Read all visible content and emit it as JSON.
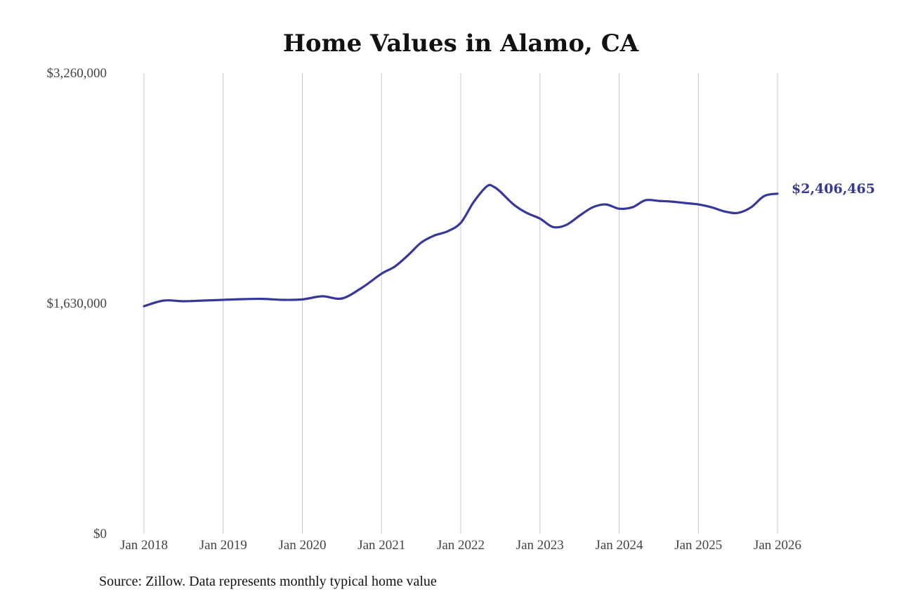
{
  "chart_data": {
    "type": "line",
    "title": "Home Values in Alamo, CA",
    "xlabel": "",
    "ylabel": "",
    "ylim": [
      0,
      3260000
    ],
    "y_ticks": [
      "$3,260,000",
      "$1,630,000",
      "$0"
    ],
    "y_tick_values": [
      3260000,
      1630000,
      0
    ],
    "x_ticks": [
      "Jan 2018",
      "Jan 2019",
      "Jan 2020",
      "Jan 2021",
      "Jan 2022",
      "Jan 2023",
      "Jan 2024",
      "Jan 2025",
      "Jan 2026"
    ],
    "x_tick_values": [
      "2018-01",
      "2019-01",
      "2020-01",
      "2021-01",
      "2022-01",
      "2023-01",
      "2024-01",
      "2025-01",
      "2026-01"
    ],
    "grid": "vertical",
    "line_color": "#37379a",
    "end_label": "$2,406,465",
    "source": "Source: Zillow. Data represents monthly typical home value",
    "series": [
      {
        "x": [
          "2018-01",
          "2018-04",
          "2018-07",
          "2018-10",
          "2019-01",
          "2019-04",
          "2019-07",
          "2019-10",
          "2020-01",
          "2020-04",
          "2020-07",
          "2020-10",
          "2021-01",
          "2021-03",
          "2021-05",
          "2021-07",
          "2021-09",
          "2021-11",
          "2022-01",
          "2022-03",
          "2022-05",
          "2022-06",
          "2022-07",
          "2022-09",
          "2022-11",
          "2023-01",
          "2023-03",
          "2023-05",
          "2023-07",
          "2023-09",
          "2023-11",
          "2024-01",
          "2024-03",
          "2024-05",
          "2024-07",
          "2024-09",
          "2024-11",
          "2025-01",
          "2025-03",
          "2025-05",
          "2025-07",
          "2025-09",
          "2025-11",
          "2026-01"
        ],
        "values": [
          1610000,
          1650000,
          1645000,
          1650000,
          1655000,
          1660000,
          1662000,
          1655000,
          1658000,
          1680000,
          1665000,
          1740000,
          1840000,
          1890000,
          1970000,
          2060000,
          2110000,
          2140000,
          2200000,
          2350000,
          2460000,
          2455000,
          2420000,
          2330000,
          2270000,
          2230000,
          2170000,
          2185000,
          2250000,
          2310000,
          2330000,
          2300000,
          2310000,
          2360000,
          2355000,
          2350000,
          2340000,
          2330000,
          2310000,
          2280000,
          2270000,
          2310000,
          2390000,
          2406465
        ]
      }
    ]
  }
}
